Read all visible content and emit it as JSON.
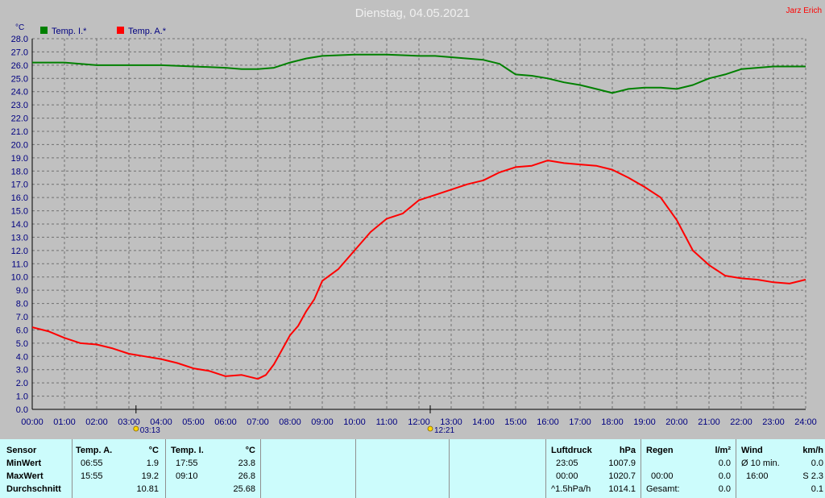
{
  "header": {
    "title": "Dienstag, 04.05.2021",
    "author": "Jarz Erich"
  },
  "legend": [
    {
      "label": "Temp. I.*",
      "color": "#008000"
    },
    {
      "label": "Temp. A.*",
      "color": "#ff0000"
    }
  ],
  "chart_data": {
    "type": "line",
    "title": "Dienstag, 04.05.2021",
    "ylabel": "°C",
    "ylim": [
      0,
      28
    ],
    "xlim": [
      0,
      24
    ],
    "yticks": [
      "0.0",
      "1.0",
      "2.0",
      "3.0",
      "4.0",
      "5.0",
      "6.0",
      "7.0",
      "8.0",
      "9.0",
      "10.0",
      "11.0",
      "12.0",
      "13.0",
      "14.0",
      "15.0",
      "16.0",
      "17.0",
      "18.0",
      "19.0",
      "20.0",
      "21.0",
      "22.0",
      "23.0",
      "24.0",
      "25.0",
      "26.0",
      "27.0",
      "28.0"
    ],
    "xticks": [
      "00:00",
      "01:00",
      "02:00",
      "03:00",
      "04:00",
      "05:00",
      "06:00",
      "07:00",
      "08:00",
      "09:00",
      "10:00",
      "11:00",
      "12:00",
      "13:00",
      "14:00",
      "15:00",
      "16:00",
      "17:00",
      "18:00",
      "19:00",
      "20:00",
      "21:00",
      "22:00",
      "23:00",
      "24:00"
    ],
    "grid": true,
    "legend_position": "top-left",
    "markers": [
      {
        "label": "03:13",
        "x": 3.22,
        "icon": "sunrise-icon"
      },
      {
        "label": "12:21",
        "x": 12.35,
        "icon": "sun-noon-icon"
      }
    ],
    "series": [
      {
        "name": "Temp. I.*",
        "color": "#008000",
        "x": [
          0,
          1,
          2,
          3,
          4,
          5,
          6,
          6.5,
          7,
          7.5,
          8,
          8.5,
          9,
          10,
          11,
          12,
          12.5,
          13,
          14,
          14.5,
          15,
          15.5,
          16,
          16.5,
          17,
          17.5,
          18,
          18.5,
          19,
          19.5,
          20,
          20.5,
          21,
          21.5,
          22,
          22.5,
          23,
          23.5,
          24
        ],
        "y": [
          26.2,
          26.2,
          26.0,
          26.0,
          26.0,
          25.9,
          25.8,
          25.7,
          25.7,
          25.8,
          26.2,
          26.5,
          26.7,
          26.8,
          26.8,
          26.7,
          26.7,
          26.6,
          26.4,
          26.1,
          25.3,
          25.2,
          25.0,
          24.7,
          24.5,
          24.2,
          23.9,
          24.2,
          24.3,
          24.3,
          24.2,
          24.5,
          25.0,
          25.3,
          25.7,
          25.8,
          25.9,
          25.9,
          25.9
        ]
      },
      {
        "name": "Temp. A.*",
        "color": "#ff0000",
        "x": [
          0,
          0.5,
          1,
          1.5,
          2,
          2.5,
          3,
          3.5,
          4,
          4.5,
          5,
          5.5,
          6,
          6.5,
          7,
          7.25,
          7.5,
          7.75,
          8,
          8.25,
          8.5,
          8.75,
          9,
          9.5,
          10,
          10.5,
          11,
          11.5,
          12,
          12.5,
          13,
          13.5,
          14,
          14.5,
          15,
          15.5,
          16,
          16.5,
          17,
          17.5,
          18,
          18.5,
          19,
          19.5,
          20,
          20.5,
          21,
          21.5,
          22,
          22.5,
          23,
          23.5,
          24
        ],
        "y": [
          6.2,
          5.9,
          5.4,
          5.0,
          4.9,
          4.6,
          4.2,
          4.0,
          3.8,
          3.5,
          3.1,
          2.9,
          2.5,
          2.6,
          2.3,
          2.6,
          3.4,
          4.5,
          5.6,
          6.3,
          7.4,
          8.3,
          9.7,
          10.6,
          12.0,
          13.4,
          14.4,
          14.8,
          15.8,
          16.2,
          16.6,
          17.0,
          17.3,
          17.9,
          18.3,
          18.4,
          18.8,
          18.6,
          18.5,
          18.4,
          18.1,
          17.5,
          16.8,
          16.0,
          14.3,
          12.0,
          10.9,
          10.1,
          9.9,
          9.8,
          9.6,
          9.5,
          9.8
        ]
      }
    ]
  },
  "table": {
    "sensor": {
      "header": "Sensor",
      "rows": [
        "MinWert",
        "MaxWert",
        "Durchschnitt"
      ]
    },
    "temp_a": {
      "header": "Temp. A.",
      "unit": "°C",
      "rows": [
        {
          "time": "06:55",
          "value": "1.9"
        },
        {
          "time": "15:55",
          "value": "19.2"
        },
        {
          "time": "",
          "value": "10.81"
        }
      ]
    },
    "temp_i": {
      "header": "Temp. I.",
      "unit": "°C",
      "rows": [
        {
          "time": "17:55",
          "value": "23.8"
        },
        {
          "time": "09:10",
          "value": "26.8"
        },
        {
          "time": "",
          "value": "25.68"
        }
      ]
    },
    "luftdruck": {
      "header": "Luftdruck",
      "unit": "hPa",
      "rows": [
        {
          "time": "23:05",
          "value": "1007.9"
        },
        {
          "time": "00:00",
          "value": "1020.7"
        },
        {
          "time": "^1.5hPa/h",
          "value": "1014.1"
        }
      ]
    },
    "regen": {
      "header": "Regen",
      "unit": "l/m²",
      "rows": [
        {
          "time": "",
          "value": "0.0"
        },
        {
          "time": "00:00",
          "value": "0.0"
        },
        {
          "time": "Gesamt:",
          "value": "0.0"
        }
      ]
    },
    "wind": {
      "header": "Wind",
      "unit": "km/h",
      "rows": [
        {
          "time": "Ø 10 min.",
          "value": "0.0"
        },
        {
          "time": "16:00",
          "value": "S 2.3"
        },
        {
          "time": "",
          "value": "0.1"
        }
      ]
    }
  }
}
